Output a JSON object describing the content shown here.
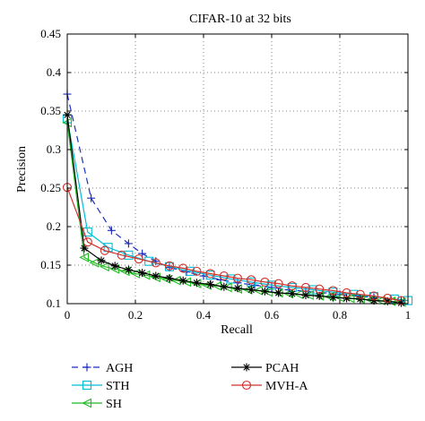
{
  "chart_data": {
    "type": "line",
    "title": "CIFAR-10 at 32 bits",
    "xlabel": "Recall",
    "ylabel": "Precision",
    "xlim": [
      0,
      1
    ],
    "ylim": [
      0.1,
      0.45
    ],
    "xticks": [
      0,
      0.2,
      0.4,
      0.6,
      0.8,
      1
    ],
    "xtick_labels": [
      "0",
      "0.2",
      "0.4",
      "0.6",
      "0.8",
      "1"
    ],
    "yticks": [
      0.1,
      0.15,
      0.2,
      0.25,
      0.3,
      0.35,
      0.4,
      0.45
    ],
    "ytick_labels": [
      "0.1",
      "0.15",
      "0.2",
      "0.25",
      "0.3",
      "0.35",
      "0.4",
      "0.45"
    ],
    "grid": true,
    "legend_position": "below",
    "series": [
      {
        "name": "AGH",
        "color": "#1f2fbf",
        "marker": "plus",
        "dash": "dashed",
        "points": [
          [
            0.0,
            0.372
          ],
          [
            0.07,
            0.237
          ],
          [
            0.13,
            0.195
          ],
          [
            0.18,
            0.178
          ],
          [
            0.22,
            0.165
          ],
          [
            0.26,
            0.155
          ],
          [
            0.3,
            0.147
          ],
          [
            0.35,
            0.141
          ],
          [
            0.4,
            0.136
          ],
          [
            0.45,
            0.131
          ],
          [
            0.5,
            0.127
          ],
          [
            0.55,
            0.124
          ],
          [
            0.6,
            0.121
          ],
          [
            0.65,
            0.118
          ],
          [
            0.7,
            0.116
          ],
          [
            0.75,
            0.114
          ],
          [
            0.8,
            0.112
          ],
          [
            0.85,
            0.11
          ],
          [
            0.9,
            0.108
          ],
          [
            0.95,
            0.106
          ],
          [
            0.98,
            0.104
          ]
        ]
      },
      {
        "name": "STH",
        "color": "#00bcd4",
        "marker": "square",
        "dash": "solid",
        "points": [
          [
            0.0,
            0.34
          ],
          [
            0.06,
            0.193
          ],
          [
            0.12,
            0.173
          ],
          [
            0.18,
            0.163
          ],
          [
            0.24,
            0.155
          ],
          [
            0.3,
            0.148
          ],
          [
            0.36,
            0.142
          ],
          [
            0.42,
            0.137
          ],
          [
            0.48,
            0.132
          ],
          [
            0.54,
            0.128
          ],
          [
            0.6,
            0.124
          ],
          [
            0.66,
            0.121
          ],
          [
            0.72,
            0.118
          ],
          [
            0.78,
            0.115
          ],
          [
            0.84,
            0.112
          ],
          [
            0.9,
            0.109
          ],
          [
            0.96,
            0.106
          ],
          [
            1.0,
            0.104
          ]
        ]
      },
      {
        "name": "SH",
        "color": "#22bb22",
        "marker": "triangle-left",
        "dash": "solid",
        "points": [
          [
            0.0,
            0.335
          ],
          [
            0.05,
            0.16
          ],
          [
            0.08,
            0.153
          ],
          [
            0.11,
            0.148
          ],
          [
            0.14,
            0.145
          ],
          [
            0.17,
            0.142
          ],
          [
            0.2,
            0.139
          ],
          [
            0.23,
            0.137
          ],
          [
            0.26,
            0.134
          ],
          [
            0.29,
            0.132
          ],
          [
            0.32,
            0.13
          ],
          [
            0.35,
            0.128
          ],
          [
            0.38,
            0.126
          ],
          [
            0.41,
            0.124
          ],
          [
            0.44,
            0.123
          ],
          [
            0.47,
            0.121
          ],
          [
            0.5,
            0.119
          ],
          [
            0.53,
            0.118
          ],
          [
            0.56,
            0.117
          ],
          [
            0.59,
            0.115
          ],
          [
            0.62,
            0.114
          ],
          [
            0.65,
            0.113
          ],
          [
            0.68,
            0.112
          ],
          [
            0.71,
            0.111
          ],
          [
            0.74,
            0.11
          ],
          [
            0.77,
            0.109
          ],
          [
            0.8,
            0.108
          ],
          [
            0.83,
            0.107
          ],
          [
            0.86,
            0.106
          ],
          [
            0.89,
            0.105
          ],
          [
            0.92,
            0.104
          ],
          [
            0.95,
            0.103
          ],
          [
            0.98,
            0.102
          ]
        ]
      },
      {
        "name": "PCAH",
        "color": "#000000",
        "marker": "asterisk",
        "dash": "solid",
        "points": [
          [
            0.0,
            0.345
          ],
          [
            0.05,
            0.172
          ],
          [
            0.1,
            0.156
          ],
          [
            0.14,
            0.149
          ],
          [
            0.18,
            0.144
          ],
          [
            0.22,
            0.14
          ],
          [
            0.26,
            0.136
          ],
          [
            0.3,
            0.133
          ],
          [
            0.34,
            0.13
          ],
          [
            0.38,
            0.127
          ],
          [
            0.42,
            0.125
          ],
          [
            0.46,
            0.122
          ],
          [
            0.5,
            0.12
          ],
          [
            0.54,
            0.118
          ],
          [
            0.58,
            0.116
          ],
          [
            0.62,
            0.114
          ],
          [
            0.66,
            0.113
          ],
          [
            0.7,
            0.111
          ],
          [
            0.74,
            0.11
          ],
          [
            0.78,
            0.108
          ],
          [
            0.82,
            0.107
          ],
          [
            0.86,
            0.106
          ],
          [
            0.9,
            0.104
          ],
          [
            0.94,
            0.103
          ],
          [
            0.98,
            0.101
          ]
        ]
      },
      {
        "name": "MVH-A",
        "color": "#d0302a",
        "marker": "circle",
        "dash": "solid",
        "points": [
          [
            0.0,
            0.251
          ],
          [
            0.06,
            0.18
          ],
          [
            0.11,
            0.169
          ],
          [
            0.16,
            0.163
          ],
          [
            0.21,
            0.158
          ],
          [
            0.26,
            0.153
          ],
          [
            0.3,
            0.149
          ],
          [
            0.34,
            0.146
          ],
          [
            0.38,
            0.142
          ],
          [
            0.42,
            0.139
          ],
          [
            0.46,
            0.136
          ],
          [
            0.5,
            0.133
          ],
          [
            0.54,
            0.131
          ],
          [
            0.58,
            0.128
          ],
          [
            0.62,
            0.126
          ],
          [
            0.66,
            0.123
          ],
          [
            0.7,
            0.121
          ],
          [
            0.74,
            0.119
          ],
          [
            0.78,
            0.117
          ],
          [
            0.82,
            0.114
          ],
          [
            0.86,
            0.112
          ],
          [
            0.9,
            0.11
          ],
          [
            0.94,
            0.107
          ],
          [
            0.98,
            0.104
          ]
        ]
      }
    ]
  }
}
